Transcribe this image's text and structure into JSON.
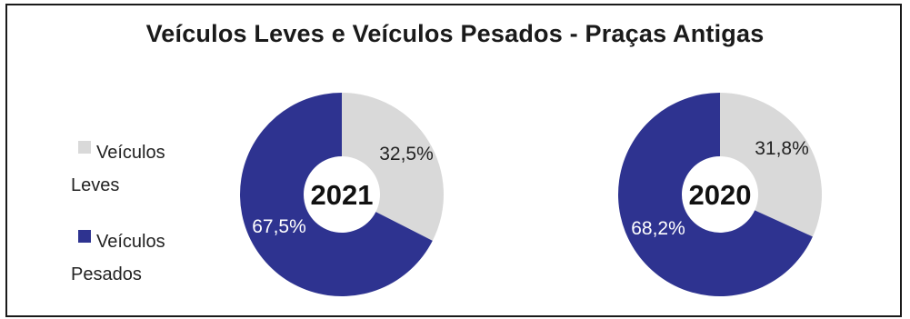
{
  "chart_data": [
    {
      "type": "pie",
      "title": "Veículos Leves e Veículos Pesados - Praças Antigas",
      "center_label": "2021",
      "slices": [
        {
          "name": "Veículos Leves",
          "value": 32.5,
          "label": "32,5%",
          "color": "#d9d9d9"
        },
        {
          "name": "Veículos Pesados",
          "value": 67.5,
          "label": "67,5%",
          "color": "#2e3390"
        }
      ]
    },
    {
      "type": "pie",
      "title": "Veículos Leves e Veículos Pesados - Praças Antigas",
      "center_label": "2020",
      "slices": [
        {
          "name": "Veículos Leves",
          "value": 31.8,
          "label": "31,8%",
          "color": "#d9d9d9"
        },
        {
          "name": "Veículos Pesados",
          "value": 68.2,
          "label": "68,2%",
          "color": "#2e3390"
        }
      ]
    }
  ],
  "title": "Veículos Leves e Veículos Pesados - Praças Antigas",
  "legend": [
    {
      "label": "Veículos Leves",
      "color": "#d9d9d9"
    },
    {
      "label": "Veículos Pesados",
      "color": "#2e3390"
    }
  ]
}
